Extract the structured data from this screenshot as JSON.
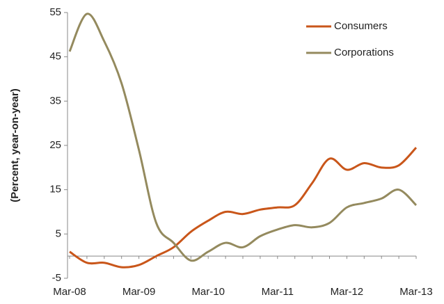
{
  "chart_data": {
    "type": "line",
    "y_label": "(Percent, year-on-year)",
    "categories": [
      "Mar-08",
      null,
      null,
      null,
      "Mar-09",
      null,
      null,
      null,
      "Mar-10",
      null,
      null,
      null,
      "Mar-11",
      null,
      null,
      null,
      "Mar-12",
      null,
      null,
      null,
      "Mar-13"
    ],
    "series": [
      {
        "name": "Consumers",
        "color": "#c9561a",
        "values": [
          1,
          -1.5,
          -1.5,
          -2.5,
          -2,
          0,
          2,
          5.5,
          8,
          10,
          9.5,
          10.5,
          11,
          11.5,
          16.5,
          22,
          19.5,
          21,
          20,
          20.5,
          24.5
        ]
      },
      {
        "name": "Corporations",
        "color": "#948a5e",
        "values": [
          46.2,
          54.7,
          48.5,
          39,
          24,
          7.5,
          3,
          -1,
          1,
          3,
          2,
          4.5,
          6,
          7,
          6.5,
          7.5,
          11,
          12,
          13,
          15,
          11.5
        ]
      }
    ],
    "ylim": [
      -5,
      55
    ],
    "yticks": [
      -5,
      5,
      15,
      25,
      35,
      45,
      55
    ],
    "legend": "top-right"
  }
}
